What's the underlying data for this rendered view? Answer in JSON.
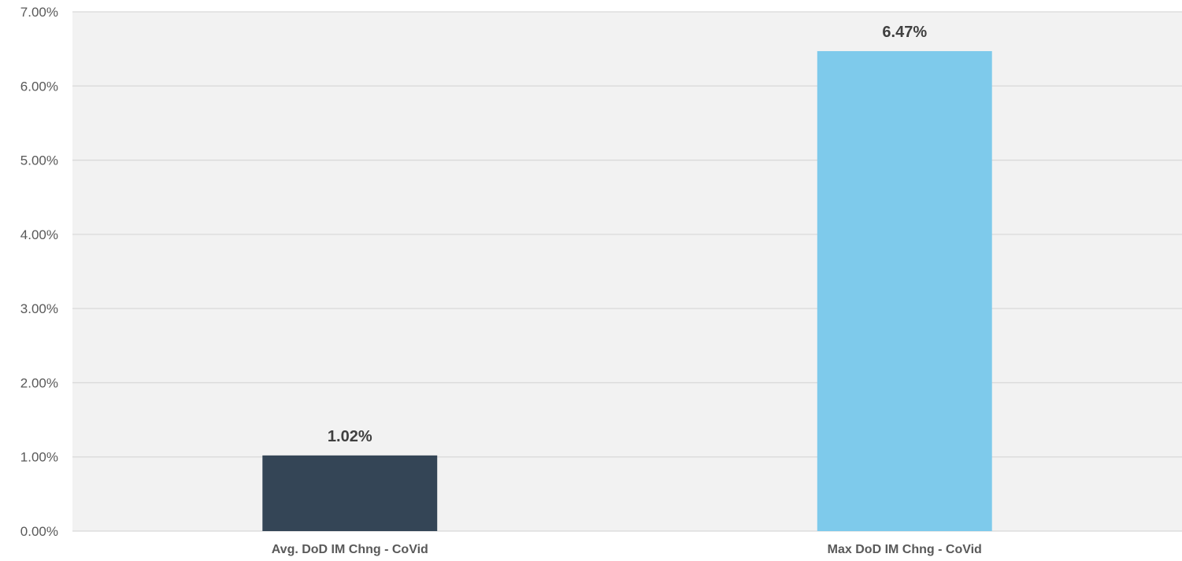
{
  "chart_data": {
    "type": "bar",
    "title": "",
    "xlabel": "",
    "ylabel": "",
    "categories": [
      "Avg. DoD IM Chng - CoVid",
      "Max DoD IM Chng - CoVid"
    ],
    "values": [
      1.02,
      6.47
    ],
    "data_labels": [
      "1.02%",
      "6.47%"
    ],
    "bar_colors": [
      "#344556",
      "#7ecaeb"
    ],
    "ylim": [
      0,
      7
    ],
    "yticks": [
      0,
      1,
      2,
      3,
      4,
      5,
      6,
      7
    ],
    "ytick_labels": [
      "0.00%",
      "1.00%",
      "2.00%",
      "3.00%",
      "4.00%",
      "5.00%",
      "6.00%",
      "7.00%"
    ],
    "grid": true,
    "legend": "none",
    "plot_background": "#f2f2f2"
  }
}
